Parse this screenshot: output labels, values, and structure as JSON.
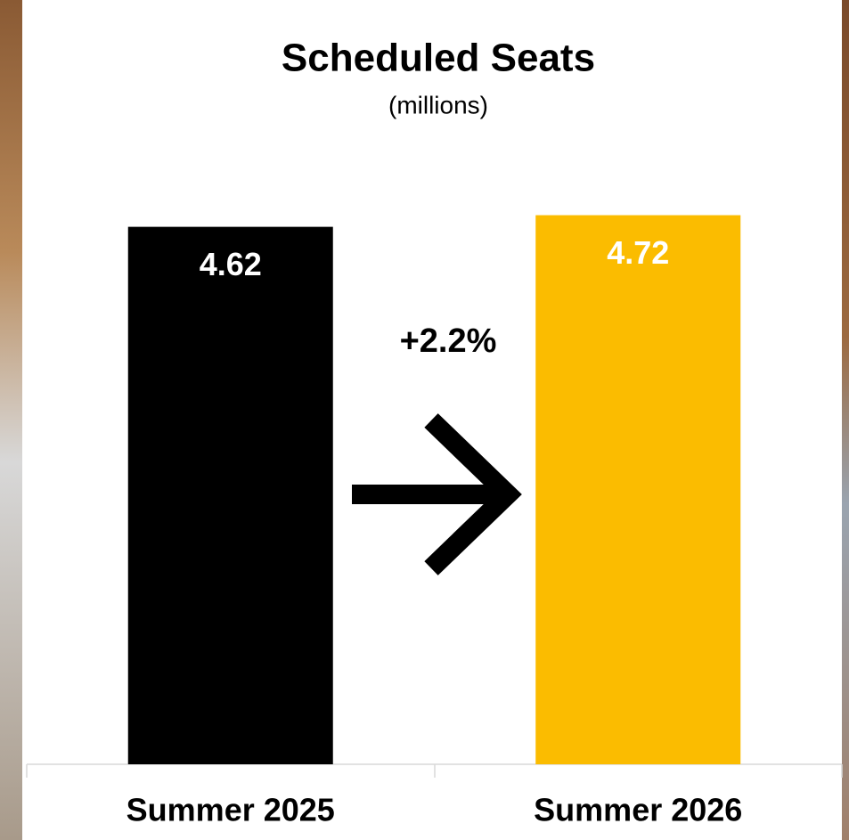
{
  "chart_data": {
    "type": "bar",
    "title": "Scheduled Seats",
    "subtitle": "(millions)",
    "categories": [
      "Summer 2025",
      "Summer 2026"
    ],
    "values": [
      4.62,
      4.72
    ],
    "colors": [
      "#000000",
      "#fbbc00"
    ],
    "annotation": "+2.2%",
    "ylim": [
      0,
      5
    ]
  }
}
